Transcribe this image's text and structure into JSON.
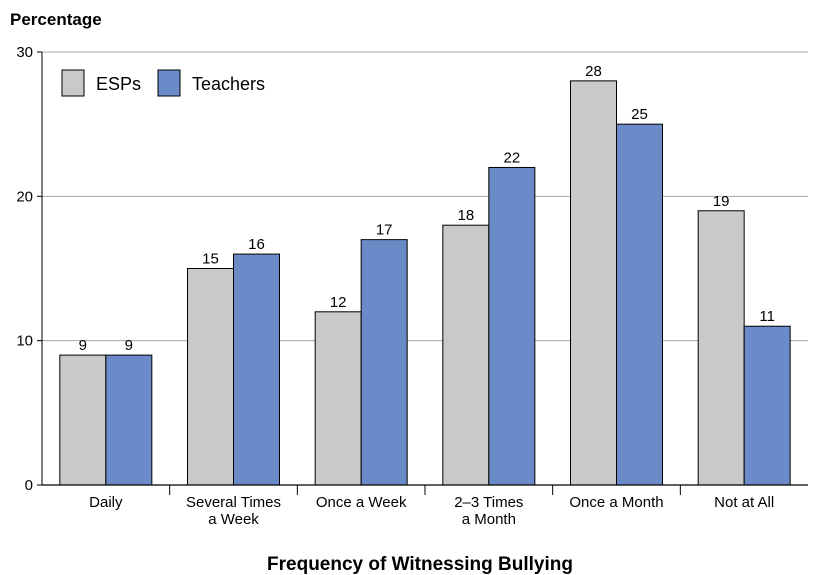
{
  "chart_data": {
    "type": "bar",
    "ylabel": "Percentage",
    "xlabel": "Frequency of Witnessing Bullying",
    "ylim": [
      0,
      30
    ],
    "yticks": [
      0,
      10,
      20,
      30
    ],
    "grid": true,
    "legend_position": "top-left",
    "categories": [
      [
        "Daily"
      ],
      [
        "Several Times",
        "a Week"
      ],
      [
        "Once a Week"
      ],
      [
        "2–3 Times",
        "a Month"
      ],
      [
        "Once a Month"
      ],
      [
        "Not at All"
      ]
    ],
    "series": [
      {
        "name": "ESPs",
        "color": "#c8c9cb",
        "values": [
          9,
          15,
          12,
          18,
          28,
          19
        ]
      },
      {
        "name": "Teachers",
        "color": "#6a8bc7",
        "values": [
          9,
          16,
          17,
          22,
          25,
          11
        ]
      }
    ]
  }
}
